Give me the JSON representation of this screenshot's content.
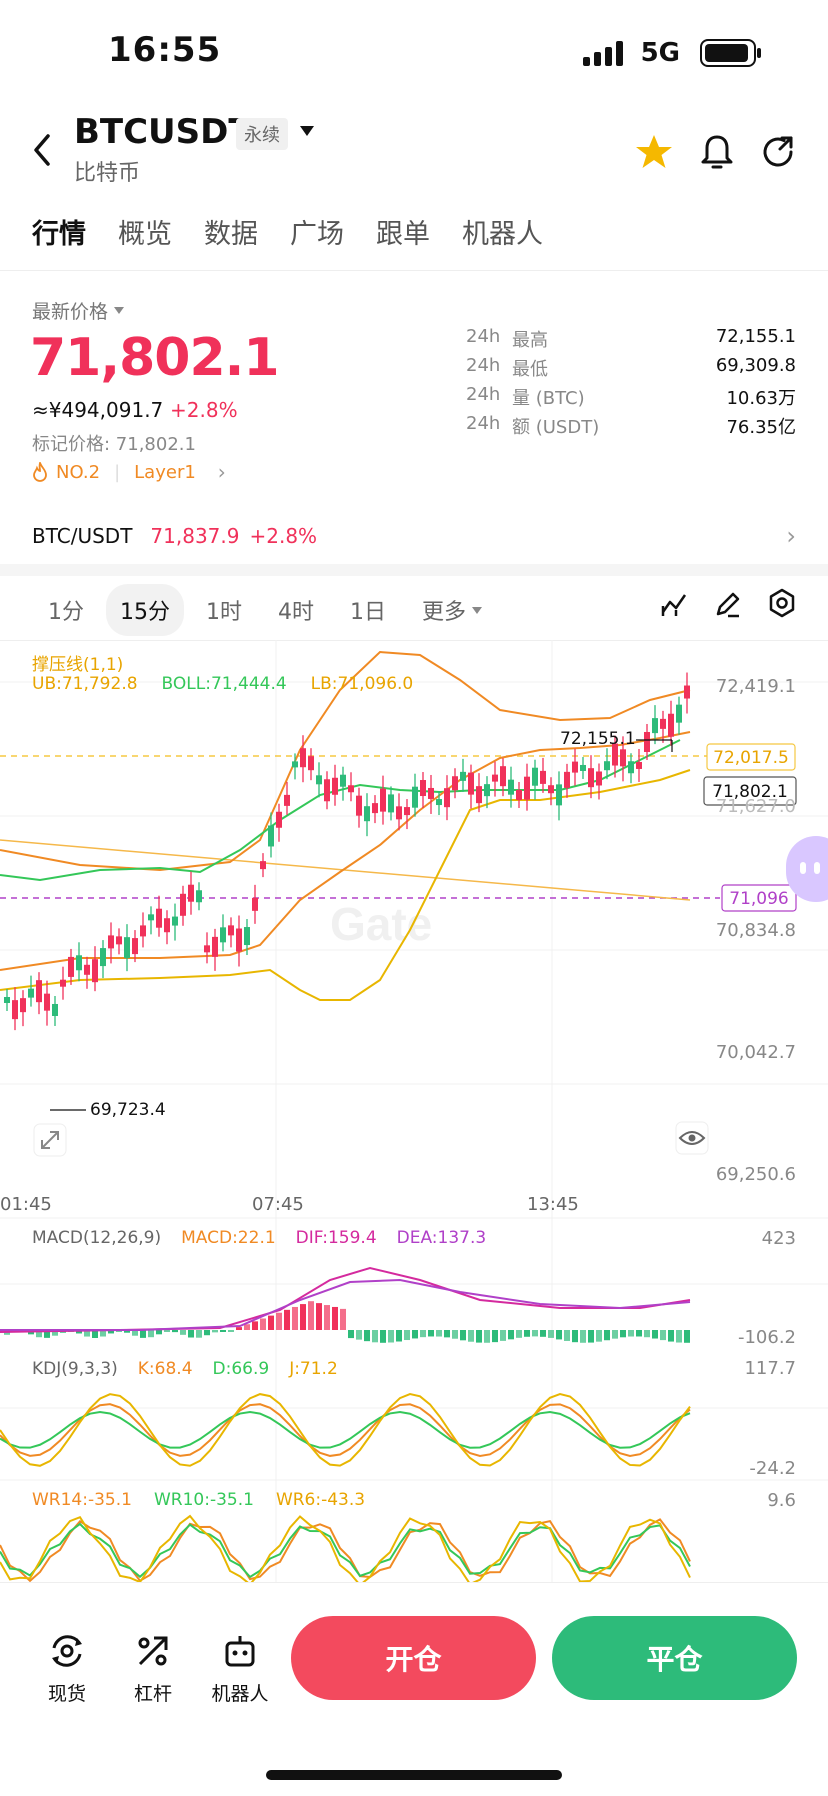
{
  "status": {
    "time": "16:55",
    "network": "5G"
  },
  "header": {
    "pair": "BTCUSDT",
    "badge": "永续",
    "subtitle": "比特币"
  },
  "tabs": [
    "行情",
    "概览",
    "数据",
    "广场",
    "跟单",
    "机器人"
  ],
  "price": {
    "label": "最新价格",
    "last": "71,802.1",
    "cny": "≈¥494,091.7",
    "change": "+2.8%",
    "mark": "标记价格: 71,802.1",
    "rank": "NO.2",
    "tag": "Layer1"
  },
  "stats": [
    {
      "p": "24h",
      "k": "最高",
      "v": "72,155.1"
    },
    {
      "p": "24h",
      "k": "最低",
      "v": "69,309.8"
    },
    {
      "p": "24h",
      "k": "量 (BTC)",
      "v": "10.63万"
    },
    {
      "p": "24h",
      "k": "额 (USDT)",
      "v": "76.35亿"
    }
  ],
  "spot": {
    "pair": "BTC/USDT",
    "price": "71,837.9",
    "change": "+2.8%"
  },
  "intervals": [
    "1分",
    "15分",
    "1时",
    "4时",
    "1日",
    "更多"
  ],
  "indicator": {
    "title": "撑压线(1,1)",
    "ub": "UB:71,792.8",
    "boll": "BOLL:71,444.4",
    "lb": "LB:71,096.0"
  },
  "axis": {
    "y": [
      "72,419.1",
      "71,627.0",
      "70,834.8",
      "70,042.7",
      "69,250.6"
    ],
    "x": [
      "01:45",
      "07:45",
      "13:45"
    ],
    "high_label": "72,155.1",
    "low_label": "69,723.4",
    "line1": "72,017.5",
    "current": "71,802.1",
    "line2": "71,096"
  },
  "macd": {
    "title": "MACD(12,26,9)",
    "macd": "MACD:22.1",
    "dif": "DIF:159.4",
    "dea": "DEA:137.3",
    "top": "423",
    "bottom": "-106.2"
  },
  "kdj": {
    "title": "KDJ(9,3,3)",
    "k": "K:68.4",
    "d": "D:66.9",
    "j": "J:71.2",
    "top": "117.7",
    "bottom": "-24.2"
  },
  "wr": {
    "wr14": "WR14:-35.1",
    "wr10": "WR10:-35.1",
    "wr6": "WR6:-43.3",
    "top": "9.6"
  },
  "bottom": {
    "spot": "现货",
    "lever": "杠杆",
    "bot": "机器人",
    "open": "开仓",
    "close": "平仓"
  },
  "colors": {
    "up": "#f0315a",
    "down": "#2dbb7a",
    "accent_orange": "#f08a24",
    "star": "#f5b800"
  }
}
